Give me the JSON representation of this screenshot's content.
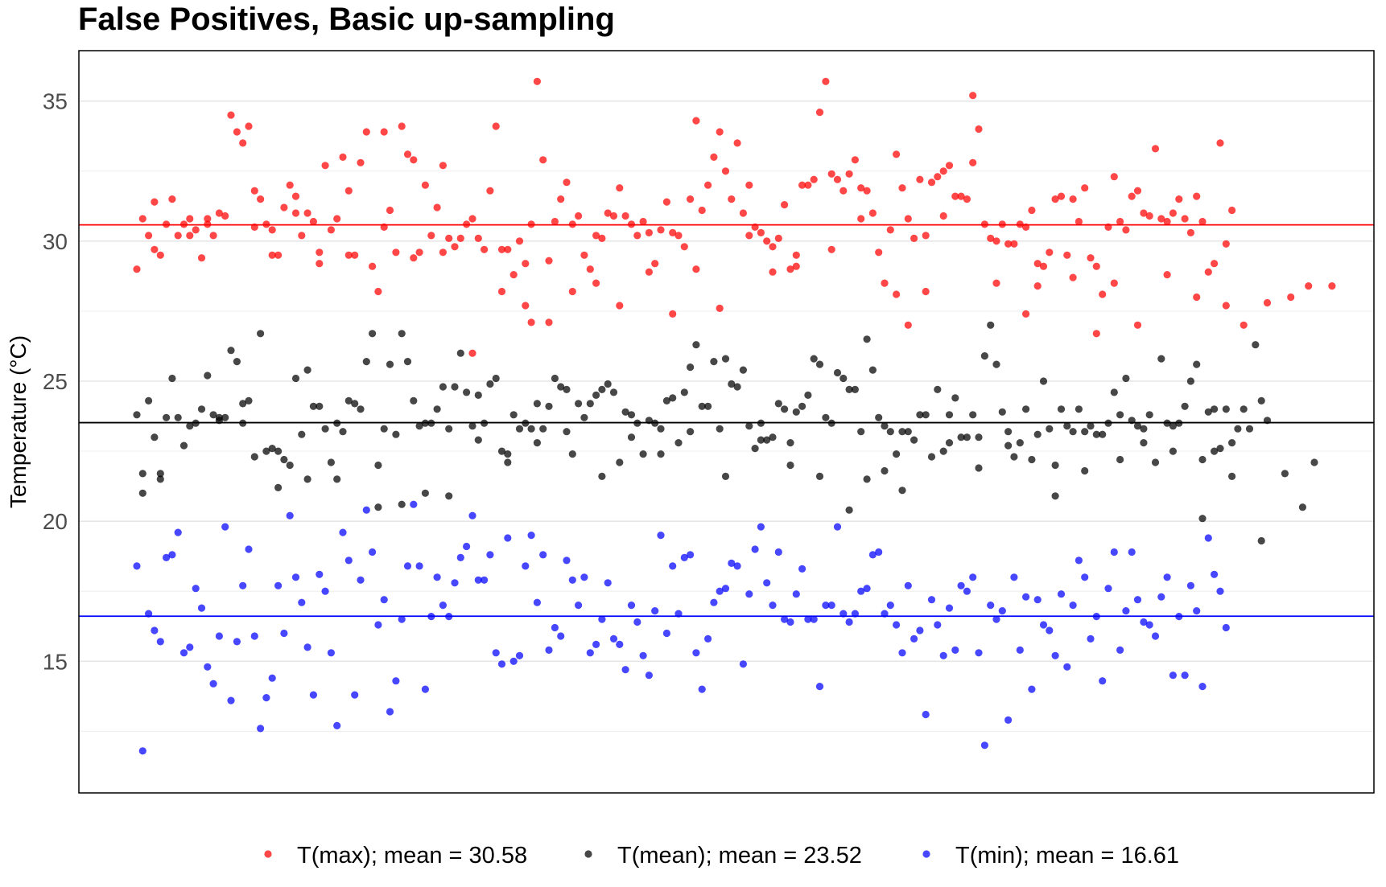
{
  "chart_data": {
    "type": "scatter",
    "title": "False Positives, Basic up-sampling",
    "xlabel": "",
    "ylabel": "Temperature (°C)",
    "yticks": [
      15,
      20,
      25,
      30,
      35
    ],
    "ylim": [
      10.3,
      36.8
    ],
    "x_ticks_shown": false,
    "grid": "horizontal major and minor",
    "legend_position": "bottom",
    "series": [
      {
        "name": "T(max); mean =  30.58",
        "color": "#ff0000",
        "mean": 30.58,
        "values": [
          29.0,
          30.8,
          30.2,
          31.4,
          29.5,
          30.6,
          31.5,
          30.2,
          30.6,
          30.8,
          30.4,
          29.4,
          30.6,
          30.2,
          31.0,
          30.9,
          34.5,
          33.9,
          33.5,
          34.1,
          31.8,
          31.5,
          30.6,
          30.4,
          29.5,
          31.2,
          32.0,
          31.0,
          30.2,
          31.0,
          30.7,
          29.2,
          32.7,
          30.4,
          30.8,
          33.0,
          31.8,
          29.5,
          32.8,
          33.9,
          29.1,
          28.2,
          33.9,
          31.1,
          29.6,
          34.1,
          33.1,
          32.9,
          29.6,
          32.0,
          30.2,
          31.2,
          32.7,
          30.1,
          29.8,
          30.1,
          30.6,
          30.8,
          30.1,
          29.7,
          31.8,
          34.1,
          29.7,
          29.7,
          28.8,
          30.0,
          29.2,
          30.6,
          35.7,
          32.9,
          29.3,
          30.7,
          31.5,
          32.1,
          30.6,
          30.9,
          29.5,
          29.0,
          30.2,
          30.1,
          31.0,
          30.9,
          31.9,
          30.9,
          30.6,
          30.2,
          30.7,
          30.3,
          29.2,
          30.4,
          31.4,
          30.3,
          30.2,
          29.8,
          31.5,
          34.3,
          31.1,
          32.0,
          33.0,
          33.9,
          32.5,
          31.5,
          33.5,
          31.0,
          32.0,
          30.5,
          30.3,
          30.0,
          29.8,
          30.1,
          31.3,
          29.0,
          29.1,
          32.0,
          32.0,
          32.2,
          34.6,
          35.7,
          32.4,
          32.2,
          31.8,
          32.4,
          32.9,
          31.9,
          31.8,
          31.0,
          29.6,
          28.5,
          30.4,
          33.1,
          31.9,
          30.8,
          30.1,
          32.2,
          30.2,
          32.1,
          32.3,
          32.5,
          32.7,
          31.6,
          31.6,
          31.5,
          35.2,
          34.0,
          30.6,
          30.1,
          30.0,
          30.6,
          29.9,
          29.9,
          30.6,
          30.5,
          31.1,
          29.2,
          29.1,
          29.6,
          31.5,
          31.6,
          29.5,
          31.5,
          30.7,
          31.9,
          29.4,
          29.1,
          28.1,
          30.5,
          32.3,
          30.7,
          30.4,
          31.6,
          31.8,
          31.0,
          30.9,
          33.3,
          30.8,
          30.7,
          31.0,
          31.5,
          30.8,
          30.3,
          31.6,
          30.7,
          28.9,
          29.2,
          33.5,
          29.9,
          31.1
        ],
        "extra_points": [
          [
            3,
            29.7
          ],
          [
            9,
            30.2
          ],
          [
            12,
            30.8
          ],
          [
            20,
            30.5
          ],
          [
            23,
            29.5
          ],
          [
            27,
            31.6
          ],
          [
            31,
            29.6
          ],
          [
            36,
            29.5
          ],
          [
            42,
            30.5
          ],
          [
            47,
            29.4
          ],
          [
            52,
            29.6
          ],
          [
            57,
            26.0
          ],
          [
            62,
            28.2
          ],
          [
            66,
            27.7
          ],
          [
            67,
            27.1
          ],
          [
            70,
            27.1
          ],
          [
            74,
            28.2
          ],
          [
            78,
            28.5
          ],
          [
            82,
            27.7
          ],
          [
            87,
            28.9
          ],
          [
            91,
            27.4
          ],
          [
            95,
            29.0
          ],
          [
            99,
            27.6
          ],
          [
            104,
            30.2
          ],
          [
            108,
            28.9
          ],
          [
            112,
            29.5
          ],
          [
            118,
            29.7
          ],
          [
            123,
            30.8
          ],
          [
            129,
            28.1
          ],
          [
            131,
            27.0
          ],
          [
            134,
            28.2
          ],
          [
            137,
            30.9
          ],
          [
            142,
            32.8
          ],
          [
            146,
            28.5
          ],
          [
            151,
            27.4
          ],
          [
            153,
            28.4
          ],
          [
            159,
            28.7
          ],
          [
            163,
            26.7
          ],
          [
            166,
            28.5
          ],
          [
            170,
            27.0
          ],
          [
            175,
            28.8
          ],
          [
            180,
            28.0
          ],
          [
            185,
            27.7
          ],
          [
            188,
            27.0
          ],
          [
            192,
            27.8
          ],
          [
            196,
            28.0
          ],
          [
            199,
            28.4
          ],
          [
            203,
            28.4
          ]
        ]
      },
      {
        "name": "T(mean); mean =  23.52",
        "color": "#000000",
        "mean": 23.52,
        "values": [
          23.8,
          21.7,
          24.3,
          23.0,
          21.7,
          23.7,
          25.1,
          23.7,
          22.7,
          23.4,
          23.5,
          24.0,
          25.2,
          23.8,
          23.7,
          23.7,
          26.1,
          25.7,
          24.2,
          24.3,
          22.3,
          26.7,
          22.5,
          22.6,
          22.5,
          22.2,
          22.0,
          25.1,
          23.1,
          25.4,
          24.1,
          24.1,
          23.3,
          22.1,
          23.5,
          23.2,
          24.3,
          24.2,
          24.0,
          25.7,
          26.7,
          22.0,
          23.3,
          25.6,
          23.1,
          26.7,
          25.7,
          24.3,
          23.4,
          23.5,
          23.5,
          24.0,
          24.8,
          23.3,
          24.8,
          26.0,
          24.6,
          23.4,
          24.5,
          23.5,
          24.9,
          25.1,
          22.5,
          22.4,
          23.8,
          23.3,
          23.5,
          23.3,
          24.2,
          23.3,
          24.1,
          25.1,
          24.8,
          24.7,
          22.4,
          24.2,
          23.7,
          24.2,
          24.5,
          24.7,
          24.9,
          24.6,
          22.1,
          23.9,
          23.8,
          23.5,
          22.4,
          23.6,
          23.5,
          23.3,
          24.3,
          24.4,
          22.8,
          24.6,
          25.5,
          26.3,
          24.1,
          24.1,
          25.7,
          23.3,
          25.8,
          24.9,
          24.8,
          25.4,
          23.4,
          22.6,
          23.5,
          22.9,
          23.0,
          24.2,
          24.0,
          22.8,
          23.9,
          24.1,
          24.5,
          25.8,
          25.6,
          23.7,
          23.5,
          25.3,
          25.1,
          24.7,
          24.7,
          23.2,
          26.5,
          25.4,
          23.7,
          23.4,
          23.2,
          22.4,
          23.2,
          23.2,
          22.9,
          23.8,
          23.8,
          22.3,
          24.7,
          22.5,
          23.8,
          24.4,
          23.0,
          23.0,
          23.8,
          23.0,
          25.9,
          27.0,
          25.6,
          23.9,
          23.2,
          22.3,
          22.8,
          24.0,
          22.2,
          23.1,
          25.0,
          23.3,
          22.0,
          24.0,
          23.4,
          23.2,
          24.0,
          23.2,
          23.4,
          23.1,
          23.1,
          23.5,
          24.6,
          23.8,
          25.1,
          23.6,
          23.4,
          23.3,
          23.8,
          22.1,
          25.8,
          23.5,
          23.4,
          23.5,
          24.1,
          25.0,
          25.6,
          22.2,
          23.9,
          24.0,
          22.6,
          24.0,
          22.8,
          23.3,
          24.0,
          23.3,
          26.3,
          24.3,
          23.6
        ],
        "extra_points": [
          [
            1,
            21.0
          ],
          [
            4,
            21.5
          ],
          [
            14,
            23.6
          ],
          [
            18,
            23.5
          ],
          [
            24,
            21.2
          ],
          [
            29,
            21.5
          ],
          [
            34,
            21.5
          ],
          [
            41,
            20.5
          ],
          [
            45,
            20.6
          ],
          [
            49,
            21.0
          ],
          [
            53,
            20.9
          ],
          [
            58,
            22.9
          ],
          [
            63,
            22.1
          ],
          [
            68,
            22.8
          ],
          [
            73,
            23.2
          ],
          [
            79,
            21.6
          ],
          [
            84,
            23.0
          ],
          [
            89,
            22.4
          ],
          [
            94,
            23.2
          ],
          [
            100,
            21.6
          ],
          [
            106,
            22.9
          ],
          [
            111,
            22.0
          ],
          [
            116,
            21.6
          ],
          [
            121,
            20.4
          ],
          [
            124,
            21.5
          ],
          [
            127,
            21.8
          ],
          [
            130,
            21.1
          ],
          [
            138,
            22.8
          ],
          [
            143,
            21.9
          ],
          [
            148,
            22.7
          ],
          [
            156,
            20.9
          ],
          [
            161,
            21.8
          ],
          [
            167,
            22.2
          ],
          [
            171,
            22.8
          ],
          [
            176,
            22.5
          ],
          [
            181,
            20.1
          ],
          [
            183,
            22.5
          ],
          [
            186,
            21.6
          ],
          [
            191,
            19.3
          ],
          [
            195,
            21.7
          ],
          [
            198,
            20.5
          ],
          [
            200,
            22.1
          ]
        ]
      },
      {
        "name": "T(min); mean =  16.61",
        "color": "#0000ff",
        "mean": 16.61,
        "values": [
          18.4,
          11.8,
          16.7,
          16.1,
          15.7,
          18.7,
          18.8,
          19.6,
          15.3,
          15.5,
          17.6,
          16.9,
          14.8,
          14.2,
          15.9,
          19.8,
          13.6,
          15.7,
          17.7,
          19.0,
          15.9,
          12.6,
          13.7,
          14.4,
          17.7,
          16.0,
          20.2,
          18.0,
          17.1,
          15.5,
          13.8,
          18.1,
          17.5,
          15.3,
          12.7,
          19.6,
          18.6,
          13.8,
          17.9,
          20.4,
          18.9,
          16.3,
          17.2,
          13.2,
          14.3,
          16.5,
          18.4,
          20.6,
          18.4,
          14.0,
          16.6,
          18.0,
          17.0,
          16.6,
          17.8,
          18.7,
          19.1,
          20.2,
          17.9,
          17.9,
          18.8,
          15.3,
          14.9,
          19.4,
          15.0,
          15.2,
          18.4,
          19.5,
          17.1,
          18.8,
          15.4,
          16.2,
          15.9,
          18.6,
          17.9,
          17.0,
          18.0,
          15.3,
          15.6,
          16.5,
          17.8,
          15.8,
          15.6,
          14.7,
          17.0,
          16.4,
          15.2,
          14.5,
          16.8,
          19.5,
          16.0,
          18.4,
          16.7,
          18.7,
          18.8,
          15.3,
          14.0,
          15.8,
          17.1,
          17.5,
          17.6,
          18.5,
          18.4,
          14.9,
          17.4,
          19.0,
          19.8,
          17.8,
          17.0,
          18.9,
          16.5,
          16.4,
          17.4,
          18.3,
          16.5,
          16.5,
          14.1,
          17.0,
          17.0,
          19.8,
          16.7,
          16.4,
          16.7,
          17.5,
          17.6,
          18.8,
          18.9,
          16.7,
          17.0,
          16.3,
          15.3,
          17.7,
          15.8,
          16.1,
          13.1,
          17.2,
          16.3,
          15.2,
          16.9,
          15.4,
          17.7,
          17.5,
          18.0,
          15.3,
          12.0,
          17.0,
          16.5,
          16.8,
          12.9,
          18.0,
          15.4,
          17.3,
          14.0,
          17.2,
          16.3,
          16.1,
          15.2,
          17.4,
          14.8,
          17.0,
          18.6,
          18.0,
          15.8,
          16.6,
          14.3,
          17.6,
          18.9,
          15.4,
          16.8,
          18.9,
          17.2,
          16.4,
          16.3,
          15.9,
          17.3,
          18.0,
          14.5,
          16.6,
          14.5,
          17.7,
          16.8,
          14.1,
          19.4,
          18.1,
          17.5,
          16.2
        ]
      }
    ]
  }
}
